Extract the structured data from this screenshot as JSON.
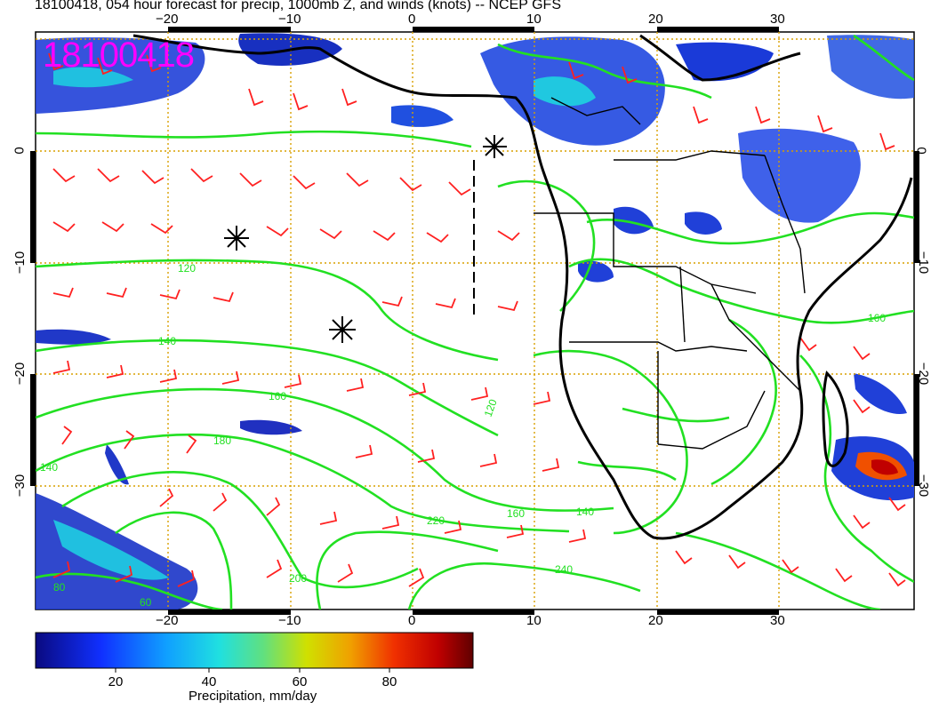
{
  "title": "18100418, 054 hour forecast for precip, 1000mb Z, and winds (knots) -- NCEP GFS",
  "run_stamp": "18100418",
  "map": {
    "lon_ticks": [
      "−20",
      "−10",
      "0",
      "10",
      "20",
      "30"
    ],
    "lat_ticks": [
      "0",
      "−10",
      "−20",
      "−30"
    ],
    "contour_labels": [
      "120",
      "140",
      "160",
      "180",
      "200",
      "220",
      "240",
      "140",
      "140",
      "160",
      "120",
      "80",
      "60",
      "160"
    ]
  },
  "colorbar": {
    "ticks": [
      "20",
      "40",
      "60",
      "80"
    ],
    "label": "Precipitation, mm/day"
  },
  "colors": {
    "contour": "#22e022",
    "barb": "#ff2020",
    "grid": "#d8a000",
    "stamp": "#ff00ff"
  }
}
